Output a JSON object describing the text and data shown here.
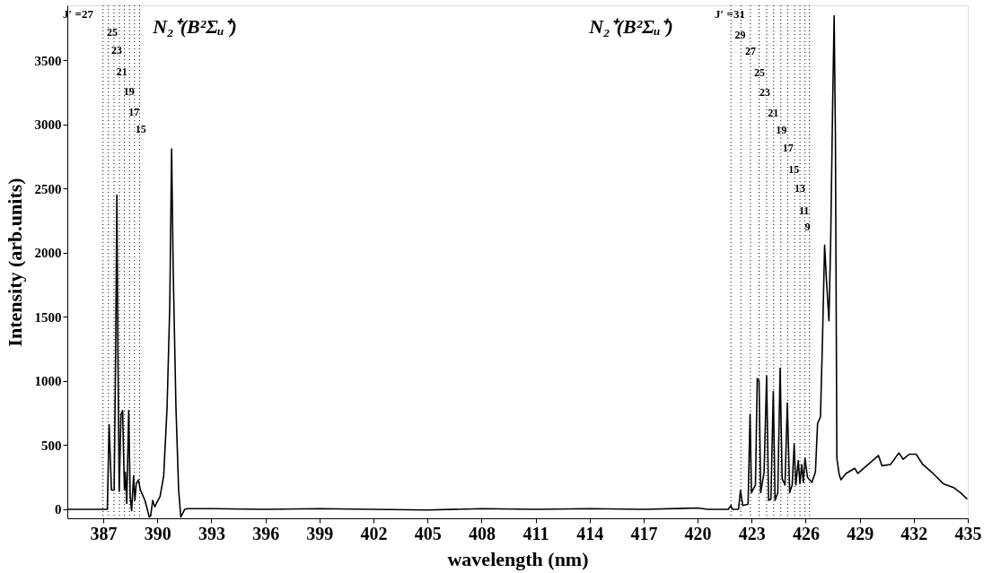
{
  "chart_data": {
    "type": "line",
    "xlabel": "wavelength (nm)",
    "ylabel": "Intensity (arb.units)",
    "xlim": [
      385,
      435
    ],
    "ylim": [
      -70,
      3930
    ],
    "xticks": [
      387,
      390,
      393,
      396,
      399,
      402,
      405,
      408,
      411,
      414,
      417,
      420,
      423,
      426,
      429,
      432,
      435
    ],
    "yticks": [
      0,
      500,
      {
        "value": 1000,
        "label": "1000"
      },
      {
        "value": 1500,
        "label": "1500"
      },
      {
        "value": 2000,
        "label": "2000"
      },
      {
        "value": 2500,
        "label": "2500"
      },
      {
        "value": 3000,
        "label": "3000"
      },
      {
        "value": 3500,
        "label": "3500"
      }
    ],
    "grid": false,
    "legend": false,
    "line_style": "solid",
    "marker": "none",
    "series": [
      {
        "color": "#000000",
        "x": [
          385,
          386.94,
          387.22,
          387.32,
          387.45,
          387.6,
          387.69,
          387.75,
          387.81,
          387.88,
          387.98,
          388.07,
          388.17,
          388.22,
          388.3,
          388.41,
          388.49,
          388.57,
          388.68,
          388.75,
          388.83,
          388.95,
          389.06,
          389.31,
          389.55,
          389.63,
          389.74,
          389.85,
          390.15,
          390.35,
          390.54,
          390.69,
          390.79,
          390.88,
          391.03,
          391.18,
          391.3,
          391.52,
          391.67,
          393,
          396,
          399,
          402,
          405,
          408,
          411,
          414,
          417,
          420,
          420.57,
          421.7,
          421.85,
          421.93,
          422.27,
          422.38,
          422.5,
          422.8,
          422.91,
          422.99,
          423.21,
          423.31,
          423.41,
          423.5,
          423.69,
          423.83,
          423.94,
          424.07,
          424.2,
          424.3,
          424.45,
          424.58,
          424.69,
          424.85,
          424.98,
          425.11,
          425.25,
          425.36,
          425.45,
          425.59,
          425.68,
          425.78,
          425.87,
          425.96,
          426.1,
          426.34,
          426.54,
          426.66,
          426.82,
          426.93,
          427.05,
          427.16,
          427.29,
          427.39,
          427.5,
          427.58,
          427.65,
          427.73,
          427.86,
          427.96,
          428.24,
          428.72,
          428.9,
          429.47,
          430.04,
          430.23,
          430.71,
          431.18,
          431.41,
          431.75,
          432.13,
          432.5,
          433.07,
          433.64,
          434.21,
          434.59,
          434.97
        ],
        "values": [
          0,
          0,
          0,
          660,
          150,
          150,
          1330,
          2450,
          1200,
          140,
          740,
          770,
          150,
          290,
          45,
          770,
          100,
          -10,
          260,
          70,
          200,
          230,
          150,
          70,
          -60,
          -50,
          70,
          20,
          100,
          260,
          800,
          1600,
          2810,
          1860,
          800,
          150,
          -60,
          0,
          5,
          5,
          0,
          5,
          0,
          -5,
          5,
          0,
          5,
          0,
          10,
          0,
          0,
          30,
          0,
          0,
          150,
          30,
          40,
          740,
          130,
          190,
          1020,
          1000,
          130,
          290,
          1040,
          70,
          80,
          920,
          70,
          130,
          1100,
          240,
          190,
          830,
          130,
          190,
          510,
          190,
          380,
          200,
          350,
          210,
          400,
          250,
          210,
          290,
          670,
          720,
          1310,
          2060,
          1770,
          1470,
          2120,
          3190,
          3850,
          2920,
          400,
          270,
          230,
          280,
          320,
          280,
          350,
          420,
          340,
          350,
          440,
          390,
          430,
          430,
          350,
          280,
          200,
          170,
          130,
          80
        ]
      }
    ],
    "ref_lines": [
      {
        "axis": "x",
        "value": 386.98,
        "line_style": "dotted",
        "color": "#000000"
      },
      {
        "axis": "x",
        "value": 387.28,
        "line_style": "dotted",
        "color": "#000000"
      },
      {
        "axis": "x",
        "value": 387.59,
        "line_style": "dotted",
        "color": "#000000"
      },
      {
        "axis": "x",
        "value": 387.89,
        "line_style": "dotted",
        "color": "#000000"
      },
      {
        "axis": "x",
        "value": 388.17,
        "line_style": "dotted",
        "color": "#000000"
      },
      {
        "axis": "x",
        "value": 388.45,
        "line_style": "dotted",
        "color": "#000000"
      },
      {
        "axis": "x",
        "value": 388.73,
        "line_style": "dotted",
        "color": "#000000"
      },
      {
        "axis": "x",
        "value": 389.01,
        "line_style": "dotted",
        "color": "#000000"
      },
      {
        "axis": "x",
        "value": 421.85,
        "line_style": "dotted",
        "color": "#000000"
      },
      {
        "axis": "x",
        "value": 422.4,
        "line_style": "dotted",
        "color": "#000000"
      },
      {
        "axis": "x",
        "value": 422.93,
        "line_style": "dotted",
        "color": "#000000"
      },
      {
        "axis": "x",
        "value": 423.41,
        "line_style": "dotted",
        "color": "#000000"
      },
      {
        "axis": "x",
        "value": 423.83,
        "line_style": "dotted",
        "color": "#000000"
      },
      {
        "axis": "x",
        "value": 424.22,
        "line_style": "dotted",
        "color": "#000000"
      },
      {
        "axis": "x",
        "value": 424.62,
        "line_style": "dotted",
        "color": "#000000"
      },
      {
        "axis": "x",
        "value": 425.0,
        "line_style": "dotted",
        "color": "#000000"
      },
      {
        "axis": "x",
        "value": 425.38,
        "line_style": "dotted",
        "color": "#000000"
      },
      {
        "axis": "x",
        "value": 425.68,
        "line_style": "dotted",
        "color": "#000000"
      },
      {
        "axis": "x",
        "value": 425.96,
        "line_style": "dotted",
        "color": "#000000"
      },
      {
        "axis": "x",
        "value": 426.21,
        "line_style": "dotted",
        "color": "#000000"
      }
    ],
    "annotations": [
      "N₂⁺(B²Σᵤ⁺)",
      "N₂⁺(B²Σᵤ⁺)",
      "J′ =27",
      {
        "text": "25",
        "x": 387.49,
        "y": 3720
      },
      {
        "text": "23",
        "x": 387.74,
        "y": 3580
      },
      {
        "text": "21",
        "x": 388.03,
        "y": 3410
      },
      {
        "text": "19",
        "x": 388.43,
        "y": 3260
      },
      {
        "text": "17",
        "x": 388.7,
        "y": 3100
      },
      {
        "text": "15",
        "x": 389.07,
        "y": 2965
      },
      "J′ =31",
      {
        "text": "29",
        "x": 422.36,
        "y": 3700
      },
      {
        "text": "27",
        "x": 422.93,
        "y": 3570
      },
      {
        "text": "25",
        "x": 423.44,
        "y": 3405
      },
      {
        "text": "23",
        "x": 423.74,
        "y": 3255
      },
      {
        "text": "21",
        "x": 424.2,
        "y": 3090
      },
      {
        "text": "19",
        "x": 424.64,
        "y": 2960
      },
      {
        "text": "17",
        "x": 425.02,
        "y": 2815
      },
      {
        "text": "15",
        "x": 425.34,
        "y": 2650
      },
      {
        "text": "13",
        "x": 425.68,
        "y": 2500
      },
      {
        "text": "11",
        "x": 425.91,
        "y": 2330
      },
      {
        "text": "9",
        "x": 426.1,
        "y": 2205
      }
    ]
  }
}
